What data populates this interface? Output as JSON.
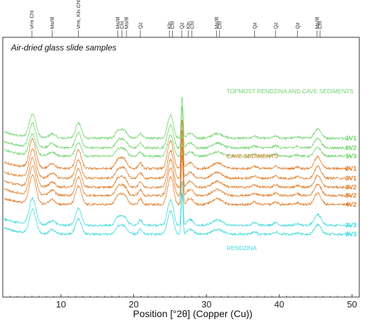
{
  "chart_data": {
    "type": "line",
    "title": "Air-dried glass slide samples",
    "xlabel": "Position [°2θ] (Copper (Cu))",
    "ylabel": "",
    "xlim": [
      2,
      51
    ],
    "xticks": [
      10,
      20,
      30,
      40,
      50
    ],
    "grid": false,
    "mineral_markers": [
      {
        "x": 6.0,
        "label": "Vrm Chl"
      },
      {
        "x": 8.8,
        "label": "Ms/Ill"
      },
      {
        "x": 12.4,
        "label": "Vrm, Kln Chl"
      },
      {
        "x": 17.8,
        "label": "Ms/Ill"
      },
      {
        "x": 18.4,
        "label": "Chl"
      },
      {
        "x": 19.0,
        "label": "Ms/Ill"
      },
      {
        "x": 20.9,
        "label": "Qz"
      },
      {
        "x": 24.9,
        "label": "Kln"
      },
      {
        "x": 25.3,
        "label": "Chl"
      },
      {
        "x": 26.6,
        "label": "Qz"
      },
      {
        "x": 27.5,
        "label": "Kln"
      },
      {
        "x": 28.0,
        "label": "Chl"
      },
      {
        "x": 31.4,
        "label": "Ms/Ill"
      },
      {
        "x": 31.8,
        "label": "Chl"
      },
      {
        "x": 36.6,
        "label": "Qz"
      },
      {
        "x": 39.5,
        "label": "Qz"
      },
      {
        "x": 42.5,
        "label": "Qz"
      },
      {
        "x": 45.2,
        "label": "Ms/Ill"
      },
      {
        "x": 45.6,
        "label": "Chl"
      }
    ],
    "groups": [
      {
        "label": "TOPMOST RENDZINA AND CAVE SEDIMENTS",
        "color": "#6fd46b",
        "series": [
          "1V1",
          "1V2",
          "1V3"
        ]
      },
      {
        "label": "CAVE SEDIMENTS",
        "color": "#e07b26",
        "series": [
          "2V1",
          "3V1",
          "2V2",
          "3V2",
          "4V2"
        ]
      },
      {
        "label": "RENDZINA",
        "color": "#3bd9dc",
        "series": [
          "2V3",
          "3V3"
        ]
      }
    ],
    "series": [
      {
        "name": "1V1",
        "group": 0,
        "baseline": 45,
        "amp": 1.0
      },
      {
        "name": "1V2",
        "group": 0,
        "baseline": 31,
        "amp": 1.0
      },
      {
        "name": "1V3",
        "group": 0,
        "baseline": 19,
        "amp": 0.9
      },
      {
        "name": "2V1",
        "group": 1,
        "baseline": 1,
        "amp": 1.2
      },
      {
        "name": "3V1",
        "group": 1,
        "baseline": -13,
        "amp": 1.2
      },
      {
        "name": "2V2",
        "group": 1,
        "baseline": -26,
        "amp": 1.2
      },
      {
        "name": "3V2",
        "group": 1,
        "baseline": -38,
        "amp": 1.2
      },
      {
        "name": "4V2",
        "group": 1,
        "baseline": -51,
        "amp": 1.2
      },
      {
        "name": "2V3",
        "group": 2,
        "baseline": -81,
        "amp": 1.1
      },
      {
        "name": "3V3",
        "group": 2,
        "baseline": -94,
        "amp": 1.0
      }
    ],
    "peaks": [
      {
        "x": 6.1,
        "h": 34,
        "w": 0.45
      },
      {
        "x": 8.8,
        "h": 6,
        "w": 0.4
      },
      {
        "x": 12.4,
        "h": 22,
        "w": 0.4
      },
      {
        "x": 17.8,
        "h": 9,
        "w": 0.35
      },
      {
        "x": 18.6,
        "h": 12,
        "w": 0.45
      },
      {
        "x": 20.9,
        "h": 7,
        "w": 0.25
      },
      {
        "x": 24.9,
        "h": 24,
        "w": 0.35
      },
      {
        "x": 25.3,
        "h": 16,
        "w": 0.3
      },
      {
        "x": 26.65,
        "h": 60,
        "w": 0.12
      },
      {
        "x": 27.5,
        "h": 5,
        "w": 0.3
      },
      {
        "x": 28.0,
        "h": 5,
        "w": 0.3
      },
      {
        "x": 31.5,
        "h": 7,
        "w": 0.7
      },
      {
        "x": 36.6,
        "h": 3,
        "w": 0.3
      },
      {
        "x": 39.5,
        "h": 3,
        "w": 0.3
      },
      {
        "x": 42.5,
        "h": 2,
        "w": 0.3
      },
      {
        "x": 45.3,
        "h": 14,
        "w": 0.45
      }
    ]
  }
}
